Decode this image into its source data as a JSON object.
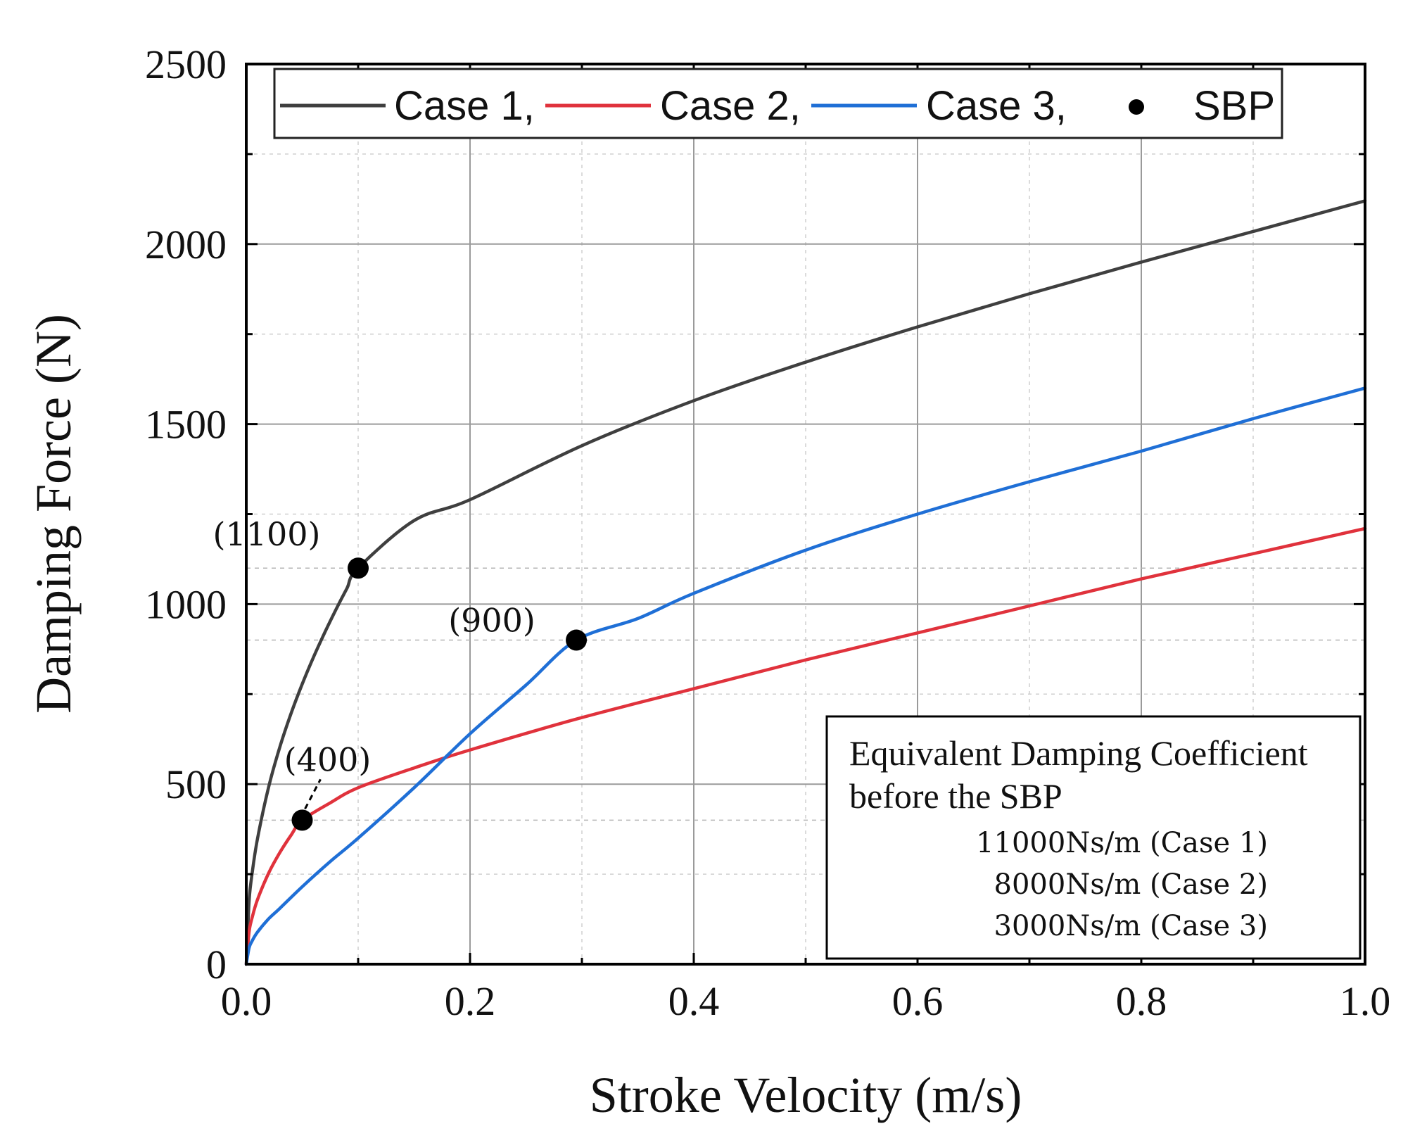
{
  "chart_data": {
    "type": "line",
    "title": "",
    "xlabel": "Stroke Velocity (m/s)",
    "ylabel": "Damping Force (N)",
    "xlim": [
      0.0,
      1.0
    ],
    "ylim": [
      0,
      2500
    ],
    "x_ticks": [
      "0.0",
      "0.2",
      "0.4",
      "0.6",
      "0.8",
      "1.0"
    ],
    "y_ticks": [
      "0",
      "500",
      "1000",
      "1500",
      "2000",
      "2500"
    ],
    "grid": true,
    "legend": {
      "placement": "top",
      "entries": [
        "Case 1,",
        "Case 2,",
        "Case 3,",
        "SBP"
      ]
    },
    "series": [
      {
        "name": "Case 1",
        "color": "#3f3f3f",
        "x": [
          0,
          0.0025,
          0.005,
          0.01,
          0.02,
          0.03,
          0.04,
          0.05,
          0.06,
          0.07,
          0.08,
          0.09,
          0.1,
          0.15,
          0.2,
          0.3,
          0.4,
          0.5,
          0.6,
          0.7,
          0.8,
          0.9,
          1.0
        ],
        "y": [
          0,
          174,
          246,
          348,
          492,
          603,
          696,
          778,
          852,
          920,
          984,
          1044,
          1100,
          1232,
          1290,
          1440,
          1565,
          1672,
          1770,
          1862,
          1950,
          2035,
          2120
        ]
      },
      {
        "name": "Case 2",
        "color": "#e0323c",
        "x": [
          0,
          0.0025,
          0.005,
          0.01,
          0.02,
          0.03,
          0.04,
          0.05,
          0.075,
          0.1,
          0.15,
          0.2,
          0.3,
          0.4,
          0.5,
          0.6,
          0.7,
          0.8,
          0.9,
          1.0
        ],
        "y": [
          0,
          89,
          126,
          179,
          253,
          310,
          358,
          400,
          448,
          490,
          545,
          595,
          685,
          765,
          845,
          920,
          995,
          1070,
          1140,
          1210
        ]
      },
      {
        "name": "Case 3",
        "color": "#1f6fd6",
        "x": [
          0,
          0.0025,
          0.005,
          0.01,
          0.02,
          0.03,
          0.05,
          0.075,
          0.1,
          0.15,
          0.2,
          0.25,
          0.295,
          0.35,
          0.4,
          0.5,
          0.6,
          0.7,
          0.8,
          0.9,
          1.0
        ],
        "y": [
          0,
          45,
          63,
          89,
          126,
          155,
          215,
          285,
          350,
          490,
          640,
          775,
          900,
          960,
          1030,
          1150,
          1250,
          1340,
          1425,
          1515,
          1600
        ]
      }
    ],
    "sbp_points": [
      {
        "x": 0.1,
        "y": 1100,
        "label": "(1100)"
      },
      {
        "x": 0.295,
        "y": 900,
        "label": "(900)"
      },
      {
        "x": 0.05,
        "y": 400,
        "label": "(400)"
      }
    ],
    "annotation_box": {
      "lines": [
        "Equivalent Damping Coefficient",
        "before the SBP",
        "11000Ns/m (Case 1)",
        "8000Ns/m (Case 2)",
        "3000Ns/m (Case 3)"
      ]
    }
  }
}
